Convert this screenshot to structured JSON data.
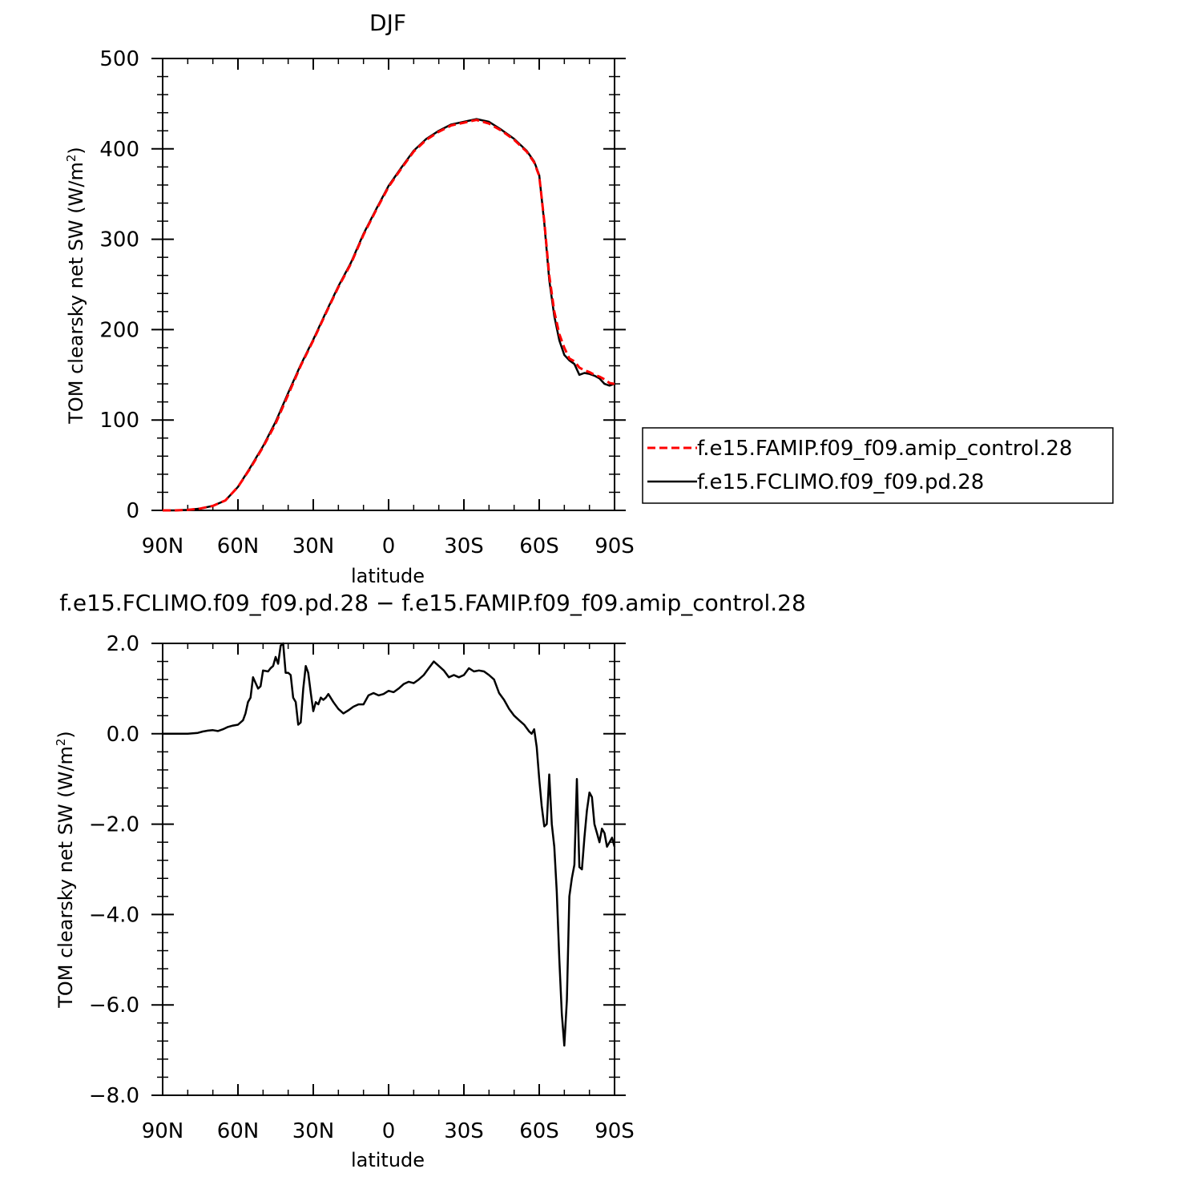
{
  "chart_data": [
    {
      "type": "line",
      "title": "DJF",
      "xlabel": "latitude",
      "ylabel": "TOM clearsky net SW (W/m²)",
      "ylabel_main": "TOM clearsky net SW (W/m",
      "ylabel_sup": "2",
      "ylabel_close": ")",
      "xlim": [
        90,
        -90
      ],
      "ylim": [
        0,
        500
      ],
      "xticks": [
        90,
        60,
        30,
        0,
        -30,
        -60,
        -90
      ],
      "xtick_labels": [
        "90N",
        "60N",
        "30N",
        "0",
        "30S",
        "60S",
        "90S"
      ],
      "yticks": [
        0,
        100,
        200,
        300,
        400,
        500
      ],
      "ytick_labels": [
        "0",
        "100",
        "200",
        "300",
        "400",
        "500"
      ],
      "legend_position": "right",
      "grid": false,
      "series": [
        {
          "name": "f.e15.FAMIP.f09_f09.amip_control.28",
          "color": "#ff0000",
          "dash": "dashed",
          "x": [
            90,
            85,
            80,
            75,
            70,
            65,
            60,
            55,
            50,
            45,
            40,
            35,
            30,
            25,
            20,
            15,
            10,
            5,
            0,
            -5,
            -10,
            -15,
            -20,
            -25,
            -30,
            -35,
            -40,
            -45,
            -50,
            -55,
            -58,
            -60,
            -62,
            -64,
            -66,
            -68,
            -70,
            -72,
            -74,
            -76,
            -78,
            -80,
            -82,
            -84,
            -86,
            -88,
            -90
          ],
          "values": [
            0,
            0,
            0.5,
            2,
            5,
            11,
            26,
            47,
            70,
            96,
            128,
            160,
            188,
            218,
            247,
            273,
            305,
            332,
            358,
            378,
            397,
            410,
            419,
            426,
            429,
            432,
            428,
            420,
            410,
            397,
            385,
            370,
            320,
            260,
            220,
            195,
            180,
            168,
            165,
            158,
            155,
            153,
            150,
            148,
            145,
            141,
            140
          ]
        },
        {
          "name": "f.e15.FCLIMO.f09_f09.pd.28",
          "color": "#000000",
          "dash": "solid",
          "x": [
            90,
            85,
            80,
            75,
            70,
            65,
            60,
            55,
            50,
            45,
            40,
            35,
            30,
            25,
            20,
            15,
            10,
            5,
            0,
            -5,
            -10,
            -15,
            -20,
            -25,
            -30,
            -35,
            -40,
            -45,
            -50,
            -55,
            -58,
            -60,
            -62,
            -64,
            -66,
            -68,
            -70,
            -72,
            -74,
            -76,
            -78,
            -80,
            -82,
            -84,
            -86,
            -88,
            -90
          ],
          "values": [
            0,
            0,
            0.5,
            2,
            5,
            11,
            26,
            48,
            71,
            98,
            130,
            161,
            189,
            219,
            248,
            274,
            306,
            333,
            359,
            379,
            398,
            411,
            420,
            427,
            430,
            433,
            430,
            421,
            411,
            398,
            386,
            371,
            318,
            255,
            215,
            188,
            172,
            166,
            162,
            150,
            152,
            151,
            149,
            146,
            140,
            138,
            140
          ]
        }
      ]
    },
    {
      "type": "line",
      "title": "f.e15.FCLIMO.f09_f09.pd.28 − f.e15.FAMIP.f09_f09.amip_control.28",
      "xlabel": "latitude",
      "ylabel": "TOM clearsky net SW (W/m²)",
      "ylabel_main": "TOM clearsky net SW (W/m",
      "ylabel_sup": "2",
      "ylabel_close": ")",
      "xlim": [
        90,
        -90
      ],
      "ylim": [
        -8,
        2
      ],
      "xticks": [
        90,
        60,
        30,
        0,
        -30,
        -60,
        -90
      ],
      "xtick_labels": [
        "90N",
        "60N",
        "30N",
        "0",
        "30S",
        "60S",
        "90S"
      ],
      "yticks": [
        -8,
        -6,
        -4,
        -2,
        0,
        2
      ],
      "ytick_labels": [
        "−8.0",
        "−6.0",
        "−4.0",
        "−2.0",
        "0.0",
        "2.0"
      ],
      "grid": false,
      "series": [
        {
          "name": "",
          "color": "#000000",
          "dash": "solid",
          "x": [
            90,
            85,
            80,
            76,
            74,
            72,
            70,
            68,
            66,
            64,
            62,
            60,
            58,
            57,
            56,
            55,
            54,
            52,
            51,
            50,
            48,
            47,
            46,
            45,
            44,
            43,
            42,
            41,
            40,
            39,
            38,
            37,
            36,
            35,
            34,
            33,
            32,
            31,
            30,
            29,
            28,
            27,
            26,
            25,
            24,
            22,
            20,
            18,
            16,
            14,
            12,
            10,
            8,
            6,
            4,
            2,
            0,
            -2,
            -4,
            -6,
            -8,
            -10,
            -12,
            -14,
            -16,
            -18,
            -20,
            -22,
            -24,
            -26,
            -28,
            -30,
            -32,
            -34,
            -36,
            -38,
            -40,
            -42,
            -44,
            -46,
            -48,
            -50,
            -52,
            -54,
            -56,
            -57,
            -58,
            -59,
            -60,
            -61,
            -62,
            -63,
            -64,
            -65,
            -66,
            -67,
            -68,
            -69,
            -70,
            -71,
            -72,
            -73,
            -74,
            -75,
            -76,
            -77,
            -78,
            -79,
            -80,
            -81,
            -82,
            -83,
            -84,
            -85,
            -86,
            -87,
            -88,
            -89,
            -90
          ],
          "values": [
            0,
            0,
            0,
            0.02,
            0.05,
            0.07,
            0.08,
            0.06,
            0.1,
            0.15,
            0.18,
            0.2,
            0.3,
            0.45,
            0.7,
            0.8,
            1.25,
            1.0,
            1.05,
            1.4,
            1.38,
            1.45,
            1.5,
            1.7,
            1.55,
            1.95,
            2.0,
            1.35,
            1.35,
            1.3,
            0.8,
            0.7,
            0.2,
            0.25,
            1.0,
            1.5,
            1.35,
            0.9,
            0.5,
            0.7,
            0.65,
            0.8,
            0.75,
            0.8,
            0.88,
            0.7,
            0.55,
            0.45,
            0.52,
            0.6,
            0.65,
            0.65,
            0.85,
            0.9,
            0.85,
            0.88,
            0.95,
            0.92,
            1.0,
            1.1,
            1.15,
            1.12,
            1.2,
            1.3,
            1.45,
            1.6,
            1.5,
            1.4,
            1.25,
            1.3,
            1.25,
            1.3,
            1.45,
            1.38,
            1.4,
            1.38,
            1.3,
            1.2,
            0.9,
            0.75,
            0.55,
            0.4,
            0.3,
            0.2,
            0.05,
            0.0,
            0.1,
            -0.3,
            -1.0,
            -1.6,
            -2.05,
            -2.0,
            -0.9,
            -2.0,
            -2.5,
            -3.5,
            -5.0,
            -6.2,
            -6.9,
            -5.9,
            -3.6,
            -3.2,
            -2.9,
            -1.0,
            -2.95,
            -3.0,
            -2.3,
            -1.7,
            -1.3,
            -1.4,
            -2.0,
            -2.2,
            -2.4,
            -2.1,
            -2.2,
            -2.5,
            -2.4,
            -2.3,
            -2.5
          ]
        }
      ]
    }
  ]
}
